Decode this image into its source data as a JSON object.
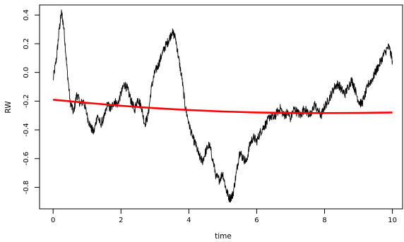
{
  "chart_data": {
    "type": "line",
    "title": "",
    "xlabel": "time",
    "ylabel": "RW",
    "xlim": [
      -0.4,
      10.3
    ],
    "ylim": [
      -0.95,
      0.47
    ],
    "xticks": [
      0,
      2,
      4,
      6,
      8,
      10
    ],
    "yticks": [
      -0.8,
      -0.6,
      -0.4,
      -0.2,
      0.0,
      0.2,
      0.4
    ],
    "ytick_labels": [
      "-0.8",
      "-0.6",
      "-0.4",
      "-0.2",
      "0.0",
      "0.2",
      "0.4"
    ],
    "grid": false,
    "legend": "none",
    "series": [
      {
        "color": "#000000",
        "style": "random-walk",
        "x": [
          0,
          0.1,
          0.18,
          0.25,
          0.32,
          0.4,
          0.5,
          0.6,
          0.7,
          0.8,
          0.9,
          1.0,
          1.1,
          1.2,
          1.3,
          1.4,
          1.5,
          1.6,
          1.7,
          1.8,
          1.9,
          2.0,
          2.1,
          2.2,
          2.3,
          2.4,
          2.5,
          2.6,
          2.7,
          2.8,
          2.9,
          3.0,
          3.1,
          3.2,
          3.3,
          3.4,
          3.5,
          3.6,
          3.7,
          3.8,
          3.9,
          4.0,
          4.1,
          4.2,
          4.3,
          4.4,
          4.5,
          4.6,
          4.7,
          4.8,
          4.9,
          5.0,
          5.1,
          5.2,
          5.3,
          5.4,
          5.5,
          5.6,
          5.7,
          5.8,
          5.9,
          6.0,
          6.1,
          6.2,
          6.3,
          6.4,
          6.5,
          6.6,
          6.7,
          6.8,
          6.9,
          7.0,
          7.1,
          7.2,
          7.3,
          7.4,
          7.5,
          7.6,
          7.7,
          7.8,
          7.9,
          8.0,
          8.1,
          8.2,
          8.3,
          8.4,
          8.5,
          8.6,
          8.7,
          8.8,
          8.9,
          9.0,
          9.1,
          9.2,
          9.3,
          9.4,
          9.5,
          9.6,
          9.7,
          9.8,
          9.9,
          10.0
        ],
        "y": [
          -0.05,
          0.1,
          0.3,
          0.42,
          0.3,
          0.05,
          -0.2,
          -0.28,
          -0.15,
          -0.22,
          -0.2,
          -0.3,
          -0.38,
          -0.42,
          -0.3,
          -0.36,
          -0.32,
          -0.22,
          -0.26,
          -0.2,
          -0.22,
          -0.15,
          -0.08,
          -0.12,
          -0.2,
          -0.26,
          -0.18,
          -0.24,
          -0.36,
          -0.3,
          -0.1,
          0.0,
          0.05,
          0.12,
          0.18,
          0.22,
          0.28,
          0.25,
          0.1,
          -0.05,
          -0.25,
          -0.35,
          -0.45,
          -0.5,
          -0.58,
          -0.62,
          -0.55,
          -0.5,
          -0.6,
          -0.72,
          -0.75,
          -0.7,
          -0.82,
          -0.88,
          -0.85,
          -0.7,
          -0.55,
          -0.6,
          -0.62,
          -0.5,
          -0.45,
          -0.48,
          -0.42,
          -0.38,
          -0.35,
          -0.3,
          -0.32,
          -0.28,
          -0.25,
          -0.3,
          -0.28,
          -0.32,
          -0.25,
          -0.28,
          -0.3,
          -0.25,
          -0.28,
          -0.3,
          -0.22,
          -0.26,
          -0.3,
          -0.24,
          -0.2,
          -0.15,
          -0.1,
          -0.08,
          -0.12,
          -0.15,
          -0.1,
          -0.05,
          -0.12,
          -0.2,
          -0.22,
          -0.15,
          -0.08,
          -0.05,
          0.0,
          0.05,
          0.1,
          0.15,
          0.18,
          0.08
        ]
      },
      {
        "color": "#ff0000",
        "style": "smooth-fit",
        "x": [
          0,
          1,
          2,
          3,
          4,
          5,
          6,
          7,
          8,
          9,
          10
        ],
        "y": [
          -0.19,
          -0.212,
          -0.232,
          -0.249,
          -0.262,
          -0.272,
          -0.279,
          -0.282,
          -0.283,
          -0.282,
          -0.279
        ]
      }
    ]
  }
}
